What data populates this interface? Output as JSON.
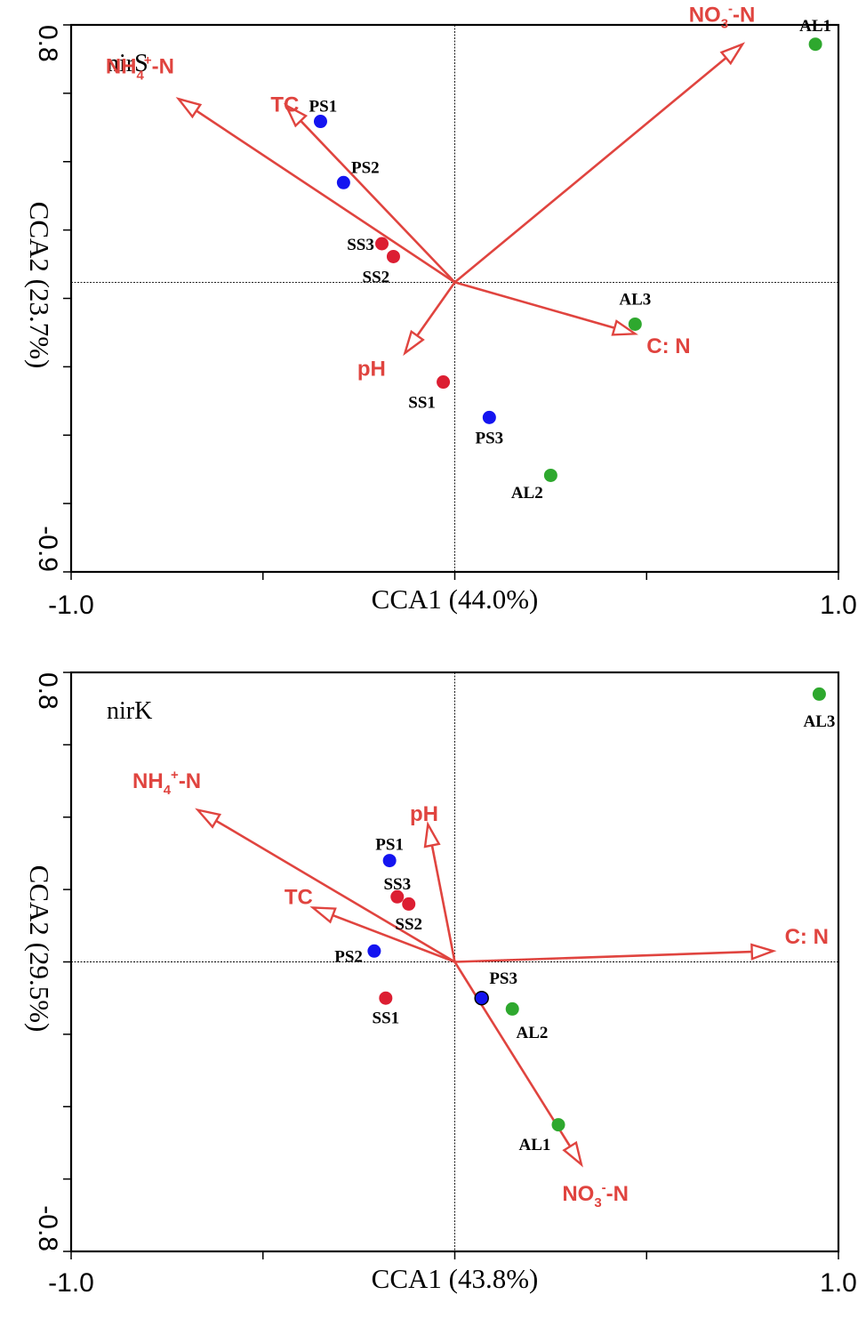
{
  "chart_data": [
    {
      "type": "scatter",
      "subtype": "CCA triplot",
      "title": "nirS",
      "xlabel": "CCA1 (44.0%)",
      "ylabel": "CCA2 (23.7%)",
      "xlim": [
        -1.0,
        1.0
      ],
      "ylim": [
        -0.9,
        0.8
      ],
      "x_ticks": [
        {
          "value": -1.0,
          "label": "-1.0"
        },
        {
          "value": 1.0,
          "label": "1.0"
        }
      ],
      "y_ticks": [
        {
          "value": 0.8,
          "label": "0.8"
        },
        {
          "value": -0.9,
          "label": "-0.9"
        }
      ],
      "vectors": [
        {
          "name": "NH4+-N",
          "base": "NH",
          "sub": "4",
          "sup": "+",
          "tail": "-N",
          "x": -0.72,
          "y": 0.57,
          "label_x": -0.91,
          "label_y": 0.65,
          "anchor": "start"
        },
        {
          "name": "TC",
          "base": "TC",
          "sub": "",
          "sup": "",
          "tail": "",
          "x": -0.44,
          "y": 0.55,
          "label_x": -0.48,
          "label_y": 0.53,
          "anchor": "start"
        },
        {
          "name": "NO3--N",
          "base": "NO",
          "sub": "3",
          "sup": "-",
          "tail": "-N",
          "x": 0.75,
          "y": 0.74,
          "label_x": 0.61,
          "label_y": 0.81,
          "anchor": "start"
        },
        {
          "name": "C: N",
          "base": "C: N",
          "sub": "",
          "sup": "",
          "tail": "",
          "x": 0.47,
          "y": -0.16,
          "label_x": 0.5,
          "label_y": -0.22,
          "anchor": "start"
        },
        {
          "name": "pH",
          "base": "pH",
          "sub": "",
          "sup": "",
          "tail": "",
          "x": -0.13,
          "y": -0.22,
          "label_x": -0.18,
          "label_y": -0.29,
          "anchor": "end"
        }
      ],
      "points": [
        {
          "label": "PS1",
          "group": "PS",
          "x": -0.35,
          "y": 0.5,
          "label_x": -0.38,
          "label_y": 0.53,
          "anchor": "start"
        },
        {
          "label": "PS2",
          "group": "PS",
          "x": -0.29,
          "y": 0.31,
          "label_x": -0.27,
          "label_y": 0.34,
          "anchor": "start"
        },
        {
          "label": "SS3",
          "group": "SS",
          "x": -0.19,
          "y": 0.12,
          "label_x": -0.21,
          "label_y": 0.1,
          "anchor": "end"
        },
        {
          "label": "SS2",
          "group": "SS",
          "x": -0.16,
          "y": 0.08,
          "label_x": -0.17,
          "label_y": 0.0,
          "anchor": "end"
        },
        {
          "label": "SS1",
          "group": "SS",
          "x": -0.03,
          "y": -0.31,
          "label_x": -0.05,
          "label_y": -0.39,
          "anchor": "end"
        },
        {
          "label": "PS3",
          "group": "PS",
          "x": 0.09,
          "y": -0.42,
          "label_x": 0.09,
          "label_y": -0.5,
          "anchor": "middle"
        },
        {
          "label": "AL2",
          "group": "AL",
          "x": 0.25,
          "y": -0.6,
          "label_x": 0.23,
          "label_y": -0.67,
          "anchor": "end"
        },
        {
          "label": "AL3",
          "group": "AL",
          "x": 0.47,
          "y": -0.13,
          "label_x": 0.47,
          "label_y": -0.07,
          "anchor": "middle"
        },
        {
          "label": "AL1",
          "group": "AL",
          "x": 0.94,
          "y": 0.74,
          "label_x": 0.94,
          "label_y": 0.78,
          "anchor": "middle"
        }
      ]
    },
    {
      "type": "scatter",
      "subtype": "CCA triplot",
      "title": "nirK",
      "xlabel": "CCA1 (43.8%)",
      "ylabel": "CCA2 (29.5%)",
      "xlim": [
        -1.0,
        1.0
      ],
      "ylim": [
        -0.8,
        0.8
      ],
      "x_ticks": [
        {
          "value": -1.0,
          "label": "-1.0"
        },
        {
          "value": 1.0,
          "label": "1.0"
        }
      ],
      "y_ticks": [
        {
          "value": 0.8,
          "label": "0.8"
        },
        {
          "value": -0.8,
          "label": "-0.8"
        }
      ],
      "vectors": [
        {
          "name": "NH4+-N",
          "base": "NH",
          "sub": "4",
          "sup": "+",
          "tail": "-N",
          "x": -0.67,
          "y": 0.42,
          "label_x": -0.84,
          "label_y": 0.48,
          "anchor": "start"
        },
        {
          "name": "TC",
          "base": "TC",
          "sub": "",
          "sup": "",
          "tail": "",
          "x": -0.37,
          "y": 0.15,
          "label_x": -0.37,
          "label_y": 0.16,
          "anchor": "end"
        },
        {
          "name": "pH",
          "base": "pH",
          "sub": "",
          "sup": "",
          "tail": "",
          "x": -0.07,
          "y": 0.38,
          "label_x": -0.08,
          "label_y": 0.39,
          "anchor": "middle"
        },
        {
          "name": "C: N",
          "base": "C: N",
          "sub": "",
          "sup": "",
          "tail": "",
          "x": 0.83,
          "y": 0.03,
          "label_x": 0.86,
          "label_y": 0.05,
          "anchor": "start"
        },
        {
          "name": "NO3--N",
          "base": "NO",
          "sub": "3",
          "sup": "-",
          "tail": "-N",
          "x": 0.33,
          "y": -0.56,
          "label_x": 0.28,
          "label_y": -0.66,
          "anchor": "start"
        }
      ],
      "points": [
        {
          "label": "PS1",
          "group": "PS",
          "x": -0.17,
          "y": 0.28,
          "label_x": -0.17,
          "label_y": 0.31,
          "anchor": "middle"
        },
        {
          "label": "SS3",
          "group": "SS",
          "x": -0.15,
          "y": 0.18,
          "label_x": -0.15,
          "label_y": 0.2,
          "anchor": "middle"
        },
        {
          "label": "SS2",
          "group": "SS",
          "x": -0.12,
          "y": 0.16,
          "label_x": -0.12,
          "label_y": 0.09,
          "anchor": "middle"
        },
        {
          "label": "PS2",
          "group": "PS",
          "x": -0.21,
          "y": 0.03,
          "label_x": -0.24,
          "label_y": 0.0,
          "anchor": "end"
        },
        {
          "label": "SS1",
          "group": "SS",
          "x": -0.18,
          "y": -0.1,
          "label_x": -0.18,
          "label_y": -0.17,
          "anchor": "middle"
        },
        {
          "label": "PS3",
          "group": "PS",
          "x": 0.07,
          "y": -0.1,
          "label_x": 0.09,
          "label_y": -0.06,
          "anchor": "start"
        },
        {
          "label": "AL2",
          "group": "AL",
          "x": 0.15,
          "y": -0.13,
          "label_x": 0.16,
          "label_y": -0.21,
          "anchor": "start"
        },
        {
          "label": "AL1",
          "group": "AL",
          "x": 0.27,
          "y": -0.45,
          "label_x": 0.25,
          "label_y": -0.52,
          "anchor": "end"
        },
        {
          "label": "AL3",
          "group": "AL",
          "x": 0.95,
          "y": 0.74,
          "label_x": 0.95,
          "label_y": 0.65,
          "anchor": "middle"
        }
      ]
    }
  ],
  "group_colors": {
    "PS": "#1414f0",
    "SS": "#dc1e32",
    "AL": "#2ea82e"
  },
  "vector_color": "#e0443f"
}
